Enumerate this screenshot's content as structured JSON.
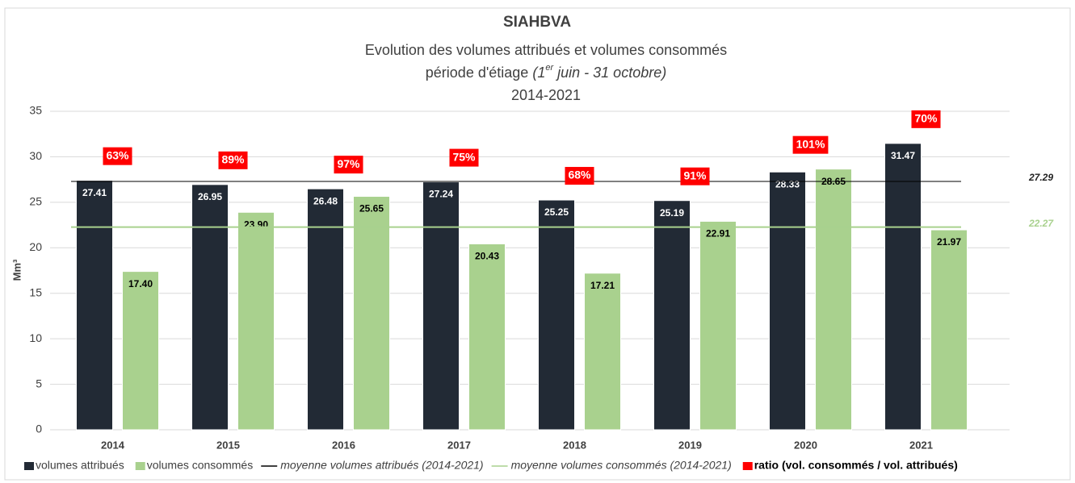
{
  "chart_data": {
    "type": "bar",
    "title": "SIAHBVA",
    "subtitle": "Evolution des volumes attribués et volumes consommés",
    "subtitle_period": {
      "text": "période d'étiage",
      "note_start": "(1",
      "note_sup": "er",
      "note_end": " juin - 31 octobre)"
    },
    "subtitle_years": "2014-2021",
    "y_label": "Mm³",
    "categories": [
      "2014",
      "2015",
      "2016",
      "2017",
      "2018",
      "2019",
      "2020",
      "2021"
    ],
    "series": [
      {
        "name": "volumes attribués",
        "color": "#222a35",
        "values": [
          27.41,
          26.95,
          26.48,
          27.24,
          25.25,
          25.19,
          28.33,
          31.47
        ],
        "value_labels": [
          "27.41",
          "26.95",
          "26.48",
          "27.24",
          "25.25",
          "25.19",
          "28.33",
          "31.47"
        ]
      },
      {
        "name": "volumes consommés",
        "color": "#a9d18e",
        "values": [
          17.4,
          23.9,
          25.65,
          20.43,
          17.21,
          22.91,
          28.65,
          21.97
        ],
        "value_labels": [
          "17.40",
          "23.90",
          "25.65",
          "20.43",
          "17.21",
          "22.91",
          "28.65",
          "21.97"
        ]
      }
    ],
    "means": [
      {
        "name": "moyenne volumes attribués (2014-2021)",
        "color": "#000000",
        "value": 27.29
      },
      {
        "name": "moyenne volumes consommés (2014-2021)",
        "color": "#a9d18e",
        "value": 22.27
      }
    ],
    "ratio": {
      "name": "ratio (vol. consommés / vol. attribués)",
      "color": "#ff0000",
      "values": [
        63,
        89,
        97,
        75,
        68,
        91,
        101,
        70
      ],
      "value_labels": [
        "63%",
        "89%",
        "97%",
        "75%",
        "68%",
        "91%",
        "101%",
        "70%"
      ]
    },
    "ylim": [
      0,
      35
    ],
    "yticks": [
      0,
      5,
      10,
      15,
      20,
      25,
      30,
      35
    ],
    "grid": true
  }
}
